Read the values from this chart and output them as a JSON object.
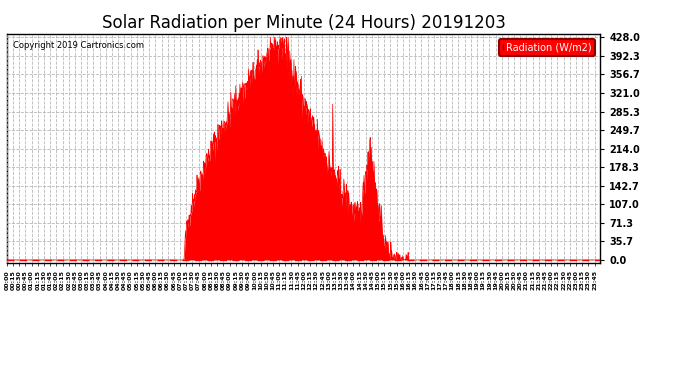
{
  "title": "Solar Radiation per Minute (24 Hours) 20191203",
  "copyright_text": "Copyright 2019 Cartronics.com",
  "legend_label": "Radiation (W/m2)",
  "background_color": "#ffffff",
  "plot_bg_color": "#ffffff",
  "fill_color": "#ff0000",
  "line_color": "#ff0000",
  "dashed_line_color": "#ff0000",
  "grid_color": "#b0b0b0",
  "title_fontsize": 12,
  "ytick_labels": [
    "0.0",
    "35.7",
    "71.3",
    "107.0",
    "142.7",
    "178.3",
    "214.0",
    "249.7",
    "285.3",
    "321.0",
    "356.7",
    "392.3",
    "428.0"
  ],
  "ytick_values": [
    0.0,
    35.7,
    71.3,
    107.0,
    142.7,
    178.3,
    214.0,
    249.7,
    285.3,
    321.0,
    356.7,
    392.3,
    428.0
  ],
  "ymax": 435,
  "ymin": -5,
  "total_minutes": 1440,
  "sunrise_minute": 430,
  "sunset_minute": 975,
  "peak_minute": 665,
  "peak_value": 428.0,
  "secondary_peak_minute": 880,
  "secondary_peak_value": 230.0
}
